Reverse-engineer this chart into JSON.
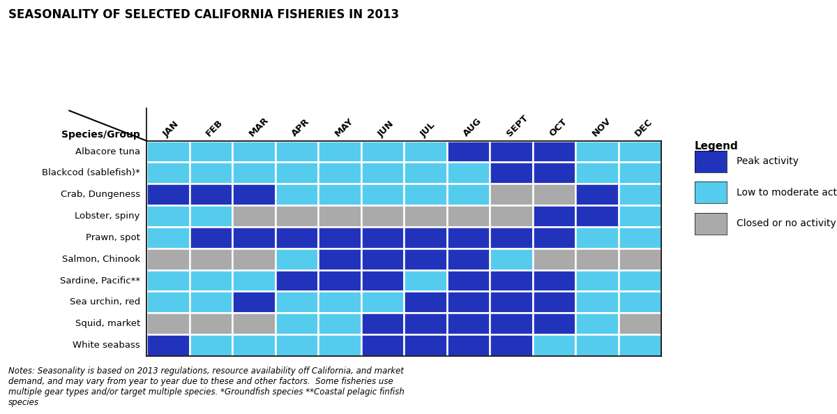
{
  "title": "SEASONALITY OF SELECTED CALIFORNIA FISHERIES IN 2013",
  "months": [
    "JAN",
    "FEB",
    "MAR",
    "APR",
    "MAY",
    "JUN",
    "JUL",
    "AUG",
    "SEPT",
    "OCT",
    "NOV",
    "DEC"
  ],
  "species": [
    "Albacore tuna",
    "Blackcod (sablefish)*",
    "Crab, Dungeness",
    "Lobster, spiny",
    "Prawn, spot",
    "Salmon, Chinook",
    "Sardine, Pacific**",
    "Sea urchin, red",
    "Squid, market",
    "White seabass"
  ],
  "colors": {
    "peak": "#2233BB",
    "low": "#55CCEE",
    "closed": "#AAAAAA"
  },
  "grid": [
    [
      "low",
      "low",
      "low",
      "low",
      "low",
      "low",
      "low",
      "peak",
      "peak",
      "peak",
      "low",
      "low"
    ],
    [
      "low",
      "low",
      "low",
      "low",
      "low",
      "low",
      "low",
      "low",
      "peak",
      "peak",
      "low",
      "low"
    ],
    [
      "peak",
      "peak",
      "peak",
      "low",
      "low",
      "low",
      "low",
      "low",
      "closed",
      "closed",
      "peak",
      "low"
    ],
    [
      "low",
      "low",
      "closed",
      "closed",
      "closed",
      "closed",
      "closed",
      "closed",
      "closed",
      "peak",
      "peak",
      "low"
    ],
    [
      "low",
      "peak",
      "peak",
      "peak",
      "peak",
      "peak",
      "peak",
      "peak",
      "peak",
      "peak",
      "low",
      "low"
    ],
    [
      "closed",
      "closed",
      "closed",
      "low",
      "peak",
      "peak",
      "peak",
      "peak",
      "low",
      "closed",
      "closed",
      "closed"
    ],
    [
      "low",
      "low",
      "low",
      "peak",
      "peak",
      "peak",
      "low",
      "peak",
      "peak",
      "peak",
      "low",
      "low"
    ],
    [
      "low",
      "low",
      "peak",
      "low",
      "low",
      "low",
      "peak",
      "peak",
      "peak",
      "peak",
      "low",
      "low"
    ],
    [
      "closed",
      "closed",
      "closed",
      "low",
      "low",
      "peak",
      "peak",
      "peak",
      "peak",
      "peak",
      "low",
      "closed"
    ],
    [
      "peak",
      "low",
      "low",
      "low",
      "low",
      "peak",
      "peak",
      "peak",
      "peak",
      "low",
      "low",
      "low"
    ]
  ],
  "notes": "Notes: Seasonality is based on 2013 regulations, resource availability off California, and market\ndemand, and may vary from year to year due to these and other factors.  Some fisheries use\nmultiple gear types and/or target multiple species. *Groundfish species **Coastal pelagic finfish\nspecies",
  "legend_title": "Legend",
  "legend_items": [
    {
      "label": "Peak activity",
      "color": "#2233BB"
    },
    {
      "label": "Low to moderate activity",
      "color": "#55CCEE"
    },
    {
      "label": "Closed or no activity",
      "color": "#AAAAAA"
    }
  ],
  "header_label": "Species/Group",
  "figsize": [
    12.0,
    5.93
  ],
  "dpi": 100
}
